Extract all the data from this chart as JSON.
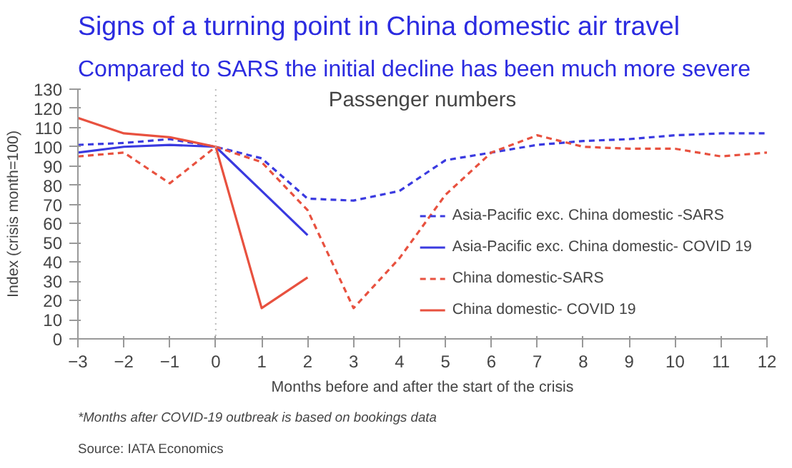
{
  "chart_data": {
    "type": "line",
    "title": "Signs of a turning point in China domestic air travel",
    "subtitle": "Compared to SARS the initial decline has been much more severe",
    "xlabel": "Months before and after the start of the crisis",
    "ylabel": "Index (crisis month=100)",
    "annotations": [
      "Passenger numbers",
      "*Months after COVID-19 outbreak is based on bookings data",
      "Source: IATA Economics"
    ],
    "x": [
      -3,
      -2,
      -1,
      0,
      1,
      2,
      3,
      4,
      5,
      6,
      7,
      8,
      9,
      10,
      11,
      12
    ],
    "series": [
      {
        "name": "Asia-Pacific exc. China domestic -SARS",
        "color": "#3a3ae0",
        "line_style": "dashed",
        "values": [
          101,
          102,
          104,
          100,
          94,
          73,
          72,
          77,
          93,
          97,
          101,
          103,
          104,
          106,
          107,
          107
        ]
      },
      {
        "name": "Asia-Pacific exc. China domestic- COVID 19",
        "color": "#3a3ae0",
        "line_style": "solid",
        "values": [
          97,
          100,
          101,
          100,
          77,
          54,
          null,
          null,
          null,
          null,
          null,
          null,
          null,
          null,
          null,
          null
        ]
      },
      {
        "name": "China domestic-SARS",
        "color": "#e8513f",
        "line_style": "dashed",
        "values": [
          95,
          97,
          81,
          100,
          92,
          67,
          16,
          42,
          75,
          97,
          106,
          100,
          99,
          99,
          95,
          97
        ]
      },
      {
        "name": "China domestic- COVID 19",
        "color": "#e8513f",
        "line_style": "solid",
        "values": [
          115,
          107,
          105,
          100,
          16,
          32,
          null,
          null,
          null,
          null,
          null,
          null,
          null,
          null,
          null,
          null
        ]
      }
    ],
    "xlim": [
      -3,
      12
    ],
    "xticks": [
      -3,
      -2,
      -1,
      0,
      1,
      2,
      3,
      4,
      5,
      6,
      7,
      8,
      9,
      10,
      11,
      12
    ],
    "ylim": [
      0,
      130
    ],
    "yticks": [
      0,
      10,
      20,
      30,
      40,
      50,
      60,
      70,
      80,
      90,
      100,
      110,
      120,
      130
    ],
    "ref_lines": [
      {
        "axis": "x",
        "value": 0,
        "color": "#bbbbbb",
        "line_style": "dotted"
      }
    ],
    "grid": false,
    "legend": "bottom right",
    "marker": "none"
  }
}
